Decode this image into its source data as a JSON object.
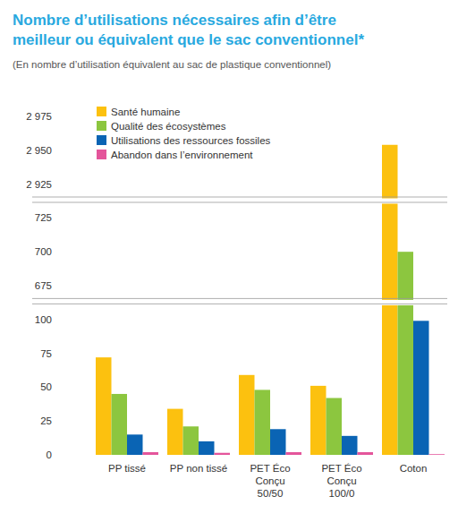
{
  "chart_data": {
    "type": "bar",
    "title": "Nombre d’utilisations nécessaires afin d’être\nmeilleur ou équivalent que le sac conventionnel*",
    "subtitle": "(En nombre d’utilisation équivalent au sac de plastique conventionnel)",
    "categories": [
      "PP tissé",
      "PP non tissé",
      "PET Éco\nConçu\n50/50",
      "PET Éco\nConçu\n100/0",
      "Coton"
    ],
    "series": [
      {
        "name": "Santé humaine",
        "color": "#fcc10f",
        "values": [
          72,
          34,
          59,
          51,
          2954
        ]
      },
      {
        "name": "Qualité des écosystèmes",
        "color": "#8cc63f",
        "values": [
          45,
          21,
          48,
          42,
          700
        ]
      },
      {
        "name": "Utilisations des ressources fossiles",
        "color": "#0a64b4",
        "values": [
          15,
          10,
          19,
          14,
          99
        ]
      },
      {
        "name": "Abandon dans l’environnement",
        "color": "#e4559b",
        "values": [
          2,
          1.5,
          2,
          2,
          0.5
        ]
      }
    ],
    "ylim": [
      0,
      2975
    ],
    "yticks": [
      0,
      25,
      50,
      75,
      100,
      675,
      700,
      725,
      {
        "value": 2925,
        "label": "2 925"
      },
      {
        "value": 2950,
        "label": "2 950"
      },
      {
        "value": 2975,
        "label": "2 975"
      }
    ],
    "grid": false,
    "legend": "top-left"
  }
}
